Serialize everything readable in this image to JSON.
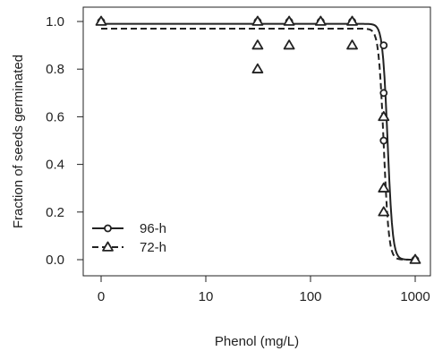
{
  "chart_data": {
    "type": "scatter",
    "title": "",
    "xlabel": "Phenol (mg/L)",
    "ylabel": "Fraction of seeds germinated",
    "x_scale": "log10 (0 plotted at left end)",
    "x_ticks": [
      {
        "value": 0,
        "label": "0"
      },
      {
        "value": 10,
        "label": "10"
      },
      {
        "value": 100,
        "label": "100"
      },
      {
        "value": 1000,
        "label": "1000"
      }
    ],
    "y_ticks": [
      {
        "value": 0.0,
        "label": "0.0"
      },
      {
        "value": 0.2,
        "label": "0.2"
      },
      {
        "value": 0.4,
        "label": "0.4"
      },
      {
        "value": 0.6,
        "label": "0.6"
      },
      {
        "value": 0.8,
        "label": "0.8"
      },
      {
        "value": 1.0,
        "label": "1.0"
      }
    ],
    "ylim": [
      0,
      1.04
    ],
    "grid": false,
    "legend_position": "bottom-left",
    "series": [
      {
        "name": "96-h",
        "marker": "circle",
        "line_style": "solid",
        "points": [
          {
            "x": 0,
            "y": 1.0
          },
          {
            "x": 31.25,
            "y": 1.0
          },
          {
            "x": 62.5,
            "y": 1.0
          },
          {
            "x": 125,
            "y": 1.0
          },
          {
            "x": 250,
            "y": 1.0
          },
          {
            "x": 500,
            "y": 0.9
          },
          {
            "x": 500,
            "y": 0.7
          },
          {
            "x": 500,
            "y": 0.5
          },
          {
            "x": 1000,
            "y": 0.0
          }
        ],
        "fit": {
          "upper": 0.99,
          "ec50": 545,
          "slope": 18
        }
      },
      {
        "name": "72-h",
        "marker": "triangle",
        "line_style": "dashed",
        "points": [
          {
            "x": 0,
            "y": 1.0
          },
          {
            "x": 31.25,
            "y": 1.0
          },
          {
            "x": 31.25,
            "y": 0.9
          },
          {
            "x": 31.25,
            "y": 0.8
          },
          {
            "x": 62.5,
            "y": 1.0
          },
          {
            "x": 62.5,
            "y": 0.9
          },
          {
            "x": 125,
            "y": 1.0
          },
          {
            "x": 250,
            "y": 1.0
          },
          {
            "x": 250,
            "y": 0.9
          },
          {
            "x": 500,
            "y": 0.6
          },
          {
            "x": 500,
            "y": 0.3
          },
          {
            "x": 500,
            "y": 0.2
          },
          {
            "x": 1000,
            "y": 0.0
          }
        ],
        "fit": {
          "upper": 0.97,
          "ec50": 500,
          "slope": 18
        }
      }
    ]
  }
}
